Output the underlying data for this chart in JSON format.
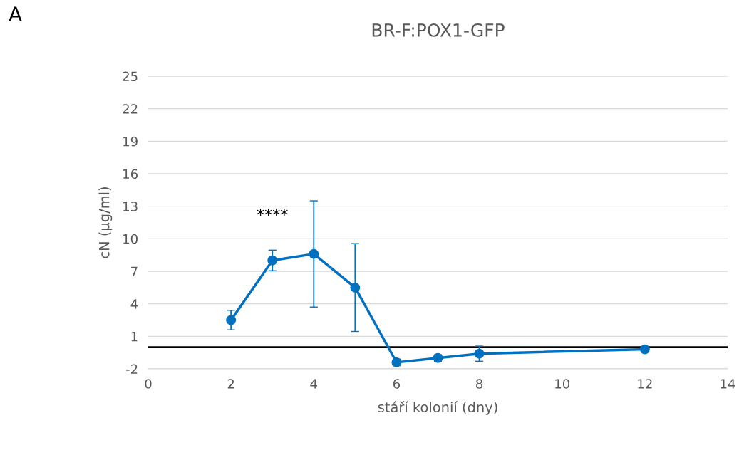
{
  "chart_data": {
    "type": "line",
    "title": "BR-F:POX1-GFP",
    "xlabel": "stáří kolonií (dny)",
    "ylabel": "cN (µg/ml)",
    "x": [
      2,
      3,
      4,
      5,
      6,
      7,
      8,
      12
    ],
    "series": [
      {
        "color": "#0070c0",
        "values": [
          2.5,
          8.0,
          8.6,
          5.5,
          -1.4,
          -1.0,
          -0.6,
          -0.2
        ],
        "errors": [
          0.9,
          0.95,
          4.9,
          4.05,
          0.3,
          0.3,
          0.7,
          0.15
        ]
      }
    ],
    "xlim": [
      0,
      14
    ],
    "xticks": [
      0,
      2,
      4,
      6,
      8,
      10,
      12,
      14
    ],
    "ylim": [
      -2,
      25
    ],
    "yticks": [
      -2,
      1,
      4,
      7,
      10,
      13,
      16,
      19,
      22,
      25
    ],
    "ref_lines": [
      {
        "axis": "y",
        "value": 0,
        "color": "#000000"
      }
    ],
    "annotations": [
      {
        "text": "****",
        "x": 3,
        "y": 8.0
      },
      "A"
    ],
    "grid": "y",
    "marker": "circle",
    "line_style": "solid",
    "legend": false
  }
}
